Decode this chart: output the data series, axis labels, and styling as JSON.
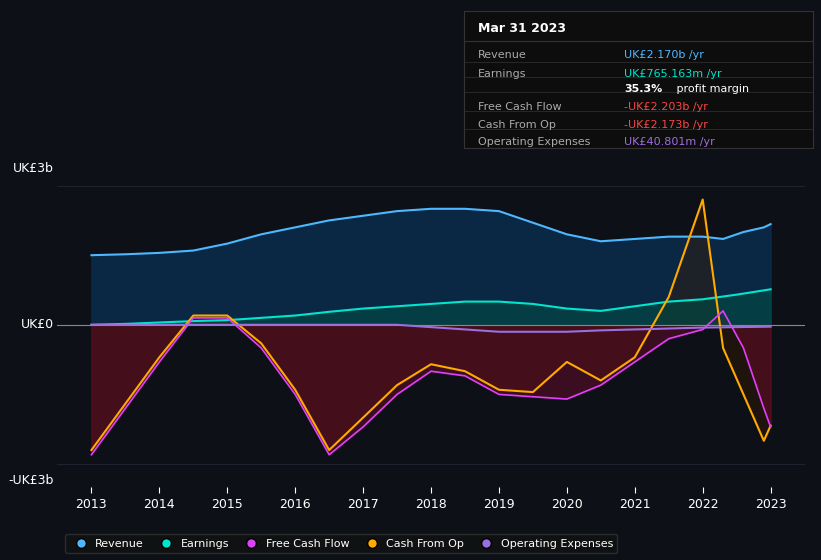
{
  "bg_color": "#0d1117",
  "plot_bg_color": "#0d1117",
  "y_label_top": "UK£3b",
  "y_label_bottom": "-UK£3b",
  "y_label_mid": "UK£0",
  "ylim": [
    -3.5,
    3.5
  ],
  "xlim": [
    2012.5,
    2023.5
  ],
  "x_ticks": [
    2013,
    2014,
    2015,
    2016,
    2017,
    2018,
    2019,
    2020,
    2021,
    2022,
    2023
  ],
  "legend": [
    {
      "label": "Revenue",
      "color": "#4db8ff"
    },
    {
      "label": "Earnings",
      "color": "#00e5cc"
    },
    {
      "label": "Free Cash Flow",
      "color": "#e040fb"
    },
    {
      "label": "Cash From Op",
      "color": "#ffaa00"
    },
    {
      "label": "Operating Expenses",
      "color": "#9c6fde"
    }
  ],
  "info_box": {
    "date": "Mar 31 2023",
    "rows": [
      {
        "label": "Revenue",
        "value": "UK£2.170b /yr",
        "value_color": "#4db8ff"
      },
      {
        "label": "Earnings",
        "value": "UK£765.163m /yr",
        "value_color": "#00e5cc"
      },
      {
        "label": "",
        "value": "35.3% profit margin",
        "value_color": "#ffffff"
      },
      {
        "label": "Free Cash Flow",
        "value": "-UK£2.203b /yr",
        "value_color": "#ff4444"
      },
      {
        "label": "Cash From Op",
        "value": "-UK£2.173b /yr",
        "value_color": "#ff4444"
      },
      {
        "label": "Operating Expenses",
        "value": "UK£40.801m /yr",
        "value_color": "#9c6fde"
      }
    ]
  },
  "revenue": {
    "x": [
      2013,
      2013.5,
      2014,
      2014.5,
      2015,
      2015.5,
      2016,
      2016.5,
      2017,
      2017.5,
      2018,
      2018.5,
      2019,
      2019.5,
      2020,
      2020.5,
      2021,
      2021.5,
      2022,
      2022.3,
      2022.6,
      2022.9,
      2023
    ],
    "y": [
      1.5,
      1.52,
      1.55,
      1.6,
      1.75,
      1.95,
      2.1,
      2.25,
      2.35,
      2.45,
      2.5,
      2.5,
      2.45,
      2.2,
      1.95,
      1.8,
      1.85,
      1.9,
      1.9,
      1.85,
      2.0,
      2.1,
      2.17
    ],
    "color": "#4db8ff",
    "fill_color": "#0a2a4a",
    "fill_alpha": 0.9
  },
  "earnings": {
    "x": [
      2013,
      2013.5,
      2014,
      2014.5,
      2015,
      2015.5,
      2016,
      2016.5,
      2017,
      2017.5,
      2018,
      2018.5,
      2019,
      2019.5,
      2020,
      2020.5,
      2021,
      2021.5,
      2022,
      2022.5,
      2023
    ],
    "y": [
      0.0,
      0.02,
      0.05,
      0.08,
      0.1,
      0.15,
      0.2,
      0.28,
      0.35,
      0.4,
      0.45,
      0.5,
      0.5,
      0.45,
      0.35,
      0.3,
      0.4,
      0.5,
      0.55,
      0.65,
      0.765
    ],
    "color": "#00e5cc",
    "fill_color": "#004d45",
    "fill_alpha": 0.6
  },
  "free_cash_flow": {
    "x": [
      2013,
      2013.5,
      2014,
      2014.5,
      2015,
      2015.5,
      2016,
      2016.5,
      2017,
      2017.5,
      2018,
      2018.5,
      2019,
      2019.5,
      2020,
      2020.5,
      2021,
      2021.5,
      2022,
      2022.3,
      2022.6,
      2022.9,
      2023
    ],
    "y": [
      -2.8,
      -1.8,
      -0.8,
      0.15,
      0.15,
      -0.5,
      -1.5,
      -2.8,
      -2.2,
      -1.5,
      -1.0,
      -1.1,
      -1.5,
      -1.55,
      -1.6,
      -1.3,
      -0.8,
      -0.3,
      -0.1,
      0.3,
      -0.5,
      -1.8,
      -2.203
    ],
    "color": "#e040fb",
    "fill_color": "#6a0a2a",
    "fill_alpha": 0.5
  },
  "cash_from_op": {
    "x": [
      2013,
      2013.5,
      2014,
      2014.5,
      2015,
      2015.5,
      2016,
      2016.5,
      2017,
      2017.5,
      2018,
      2018.5,
      2019,
      2019.5,
      2020,
      2020.5,
      2021,
      2021.5,
      2022,
      2022.3,
      2022.6,
      2022.9,
      2023
    ],
    "y": [
      -2.7,
      -1.7,
      -0.7,
      0.2,
      0.2,
      -0.4,
      -1.4,
      -2.7,
      -2.0,
      -1.3,
      -0.85,
      -1.0,
      -1.4,
      -1.45,
      -0.8,
      -1.2,
      -0.7,
      0.6,
      2.7,
      -0.5,
      -1.5,
      -2.5,
      -2.173
    ],
    "color": "#ffaa00",
    "fill_color": "#3a1a00",
    "fill_alpha": 0.4
  },
  "operating_expenses": {
    "x": [
      2013,
      2013.5,
      2014,
      2014.5,
      2015,
      2015.5,
      2016,
      2016.5,
      2017,
      2017.5,
      2018,
      2018.5,
      2019,
      2019.5,
      2020,
      2020.5,
      2021,
      2021.5,
      2022,
      2022.5,
      2023
    ],
    "y": [
      0.0,
      0.0,
      0.0,
      0.0,
      0.0,
      0.0,
      0.0,
      0.0,
      0.0,
      0.0,
      -0.05,
      -0.1,
      -0.15,
      -0.15,
      -0.15,
      -0.12,
      -0.1,
      -0.08,
      -0.06,
      -0.05,
      -0.04
    ],
    "color": "#9c6fde"
  }
}
